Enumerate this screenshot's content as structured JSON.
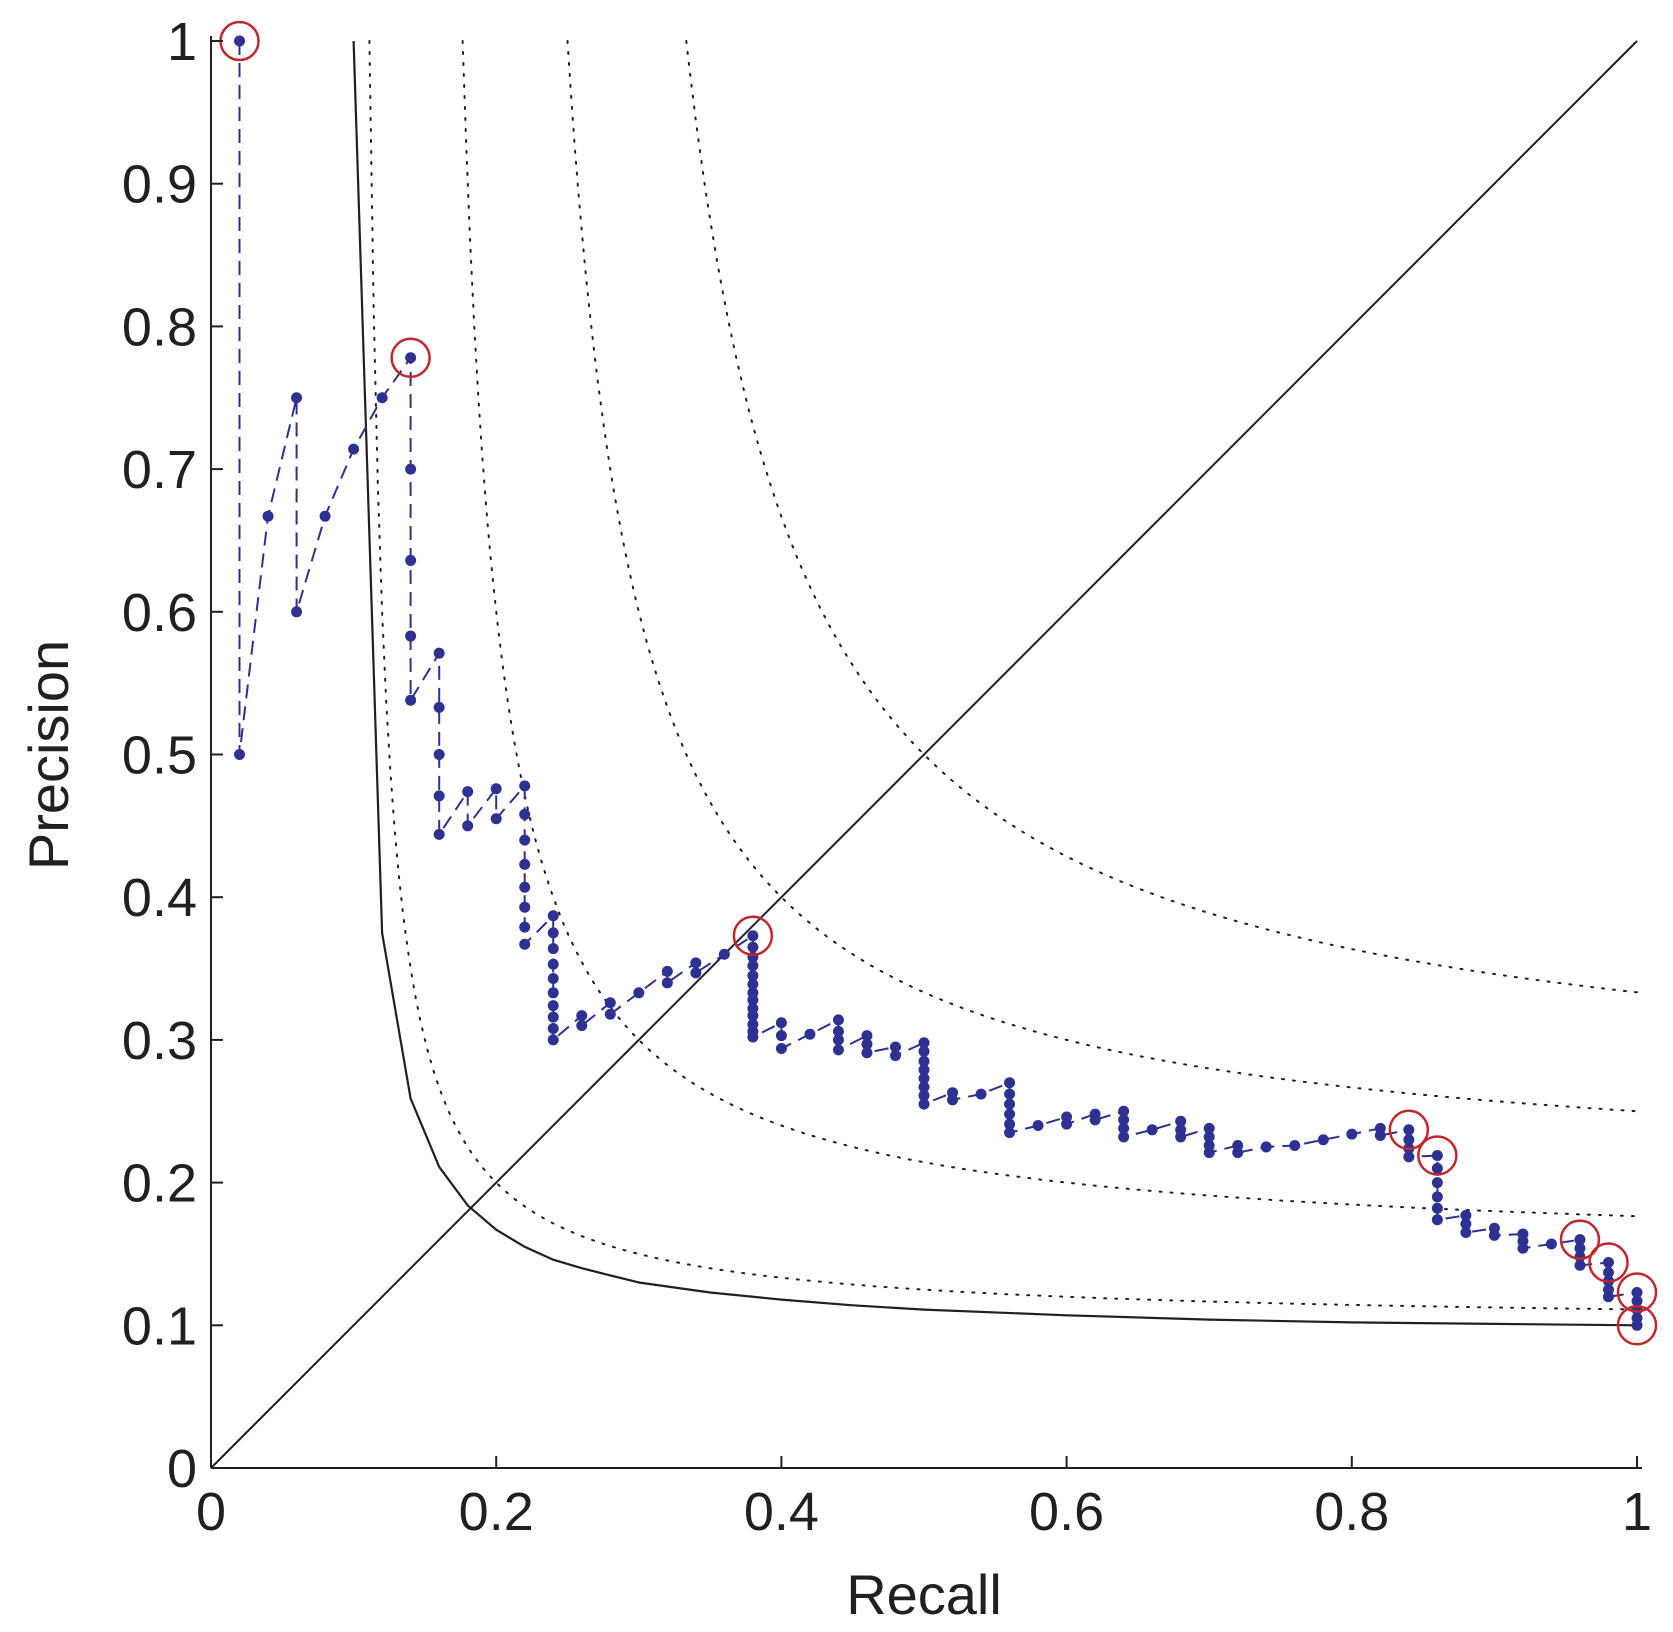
{
  "chart_data": {
    "type": "line",
    "title": "",
    "xlabel": "Recall",
    "ylabel": "Precision",
    "xlim": [
      0,
      1
    ],
    "ylim": [
      0,
      1
    ],
    "x_ticks": [
      "0",
      "0.2",
      "0.4",
      "0.6",
      "0.8",
      "1"
    ],
    "y_ticks": [
      "0",
      "0.1",
      "0.2",
      "0.3",
      "0.4",
      "0.5",
      "0.6",
      "0.7",
      "0.8",
      "0.9",
      "1"
    ],
    "grid": false,
    "legend": "none",
    "colors": {
      "pr_series": "#2e3192",
      "highlight": "#c1272d",
      "reference": "#231f20"
    },
    "series": [
      {
        "style": "dashed-markers",
        "points": [
          [
            0.02,
            1.0
          ],
          [
            0.02,
            0.5
          ],
          [
            0.04,
            0.667
          ],
          [
            0.06,
            0.75
          ],
          [
            0.06,
            0.6
          ],
          [
            0.08,
            0.667
          ],
          [
            0.1,
            0.714
          ],
          [
            0.12,
            0.75
          ],
          [
            0.14,
            0.778
          ],
          [
            0.14,
            0.7
          ],
          [
            0.14,
            0.636
          ],
          [
            0.14,
            0.583
          ],
          [
            0.14,
            0.538
          ],
          [
            0.16,
            0.571
          ],
          [
            0.16,
            0.533
          ],
          [
            0.16,
            0.5
          ],
          [
            0.16,
            0.471
          ],
          [
            0.16,
            0.444
          ],
          [
            0.18,
            0.474
          ],
          [
            0.18,
            0.45
          ],
          [
            0.2,
            0.476
          ],
          [
            0.2,
            0.455
          ],
          [
            0.22,
            0.478
          ],
          [
            0.22,
            0.458
          ],
          [
            0.22,
            0.44
          ],
          [
            0.22,
            0.423
          ],
          [
            0.22,
            0.407
          ],
          [
            0.22,
            0.393
          ],
          [
            0.22,
            0.379
          ],
          [
            0.22,
            0.367
          ],
          [
            0.24,
            0.387
          ],
          [
            0.24,
            0.375
          ],
          [
            0.24,
            0.364
          ],
          [
            0.24,
            0.353
          ],
          [
            0.24,
            0.343
          ],
          [
            0.24,
            0.333
          ],
          [
            0.24,
            0.324
          ],
          [
            0.24,
            0.316
          ],
          [
            0.24,
            0.308
          ],
          [
            0.24,
            0.3
          ],
          [
            0.26,
            0.317
          ],
          [
            0.26,
            0.31
          ],
          [
            0.28,
            0.326
          ],
          [
            0.28,
            0.318
          ],
          [
            0.3,
            0.333
          ],
          [
            0.32,
            0.348
          ],
          [
            0.32,
            0.34
          ],
          [
            0.34,
            0.354
          ],
          [
            0.34,
            0.347
          ],
          [
            0.36,
            0.36
          ],
          [
            0.38,
            0.373
          ],
          [
            0.38,
            0.365
          ],
          [
            0.38,
            0.358
          ],
          [
            0.38,
            0.352
          ],
          [
            0.38,
            0.345
          ],
          [
            0.38,
            0.339
          ],
          [
            0.38,
            0.333
          ],
          [
            0.38,
            0.328
          ],
          [
            0.38,
            0.322
          ],
          [
            0.38,
            0.317
          ],
          [
            0.38,
            0.311
          ],
          [
            0.38,
            0.306
          ],
          [
            0.38,
            0.302
          ],
          [
            0.4,
            0.312
          ],
          [
            0.4,
            0.303
          ],
          [
            0.4,
            0.294
          ],
          [
            0.42,
            0.304
          ],
          [
            0.44,
            0.314
          ],
          [
            0.44,
            0.306
          ],
          [
            0.44,
            0.3
          ],
          [
            0.44,
            0.293
          ],
          [
            0.46,
            0.303
          ],
          [
            0.46,
            0.297
          ],
          [
            0.46,
            0.291
          ],
          [
            0.48,
            0.295
          ],
          [
            0.48,
            0.289
          ],
          [
            0.5,
            0.298
          ],
          [
            0.5,
            0.292
          ],
          [
            0.5,
            0.285
          ],
          [
            0.5,
            0.279
          ],
          [
            0.5,
            0.273
          ],
          [
            0.5,
            0.267
          ],
          [
            0.5,
            0.261
          ],
          [
            0.5,
            0.255
          ],
          [
            0.52,
            0.263
          ],
          [
            0.52,
            0.258
          ],
          [
            0.54,
            0.262
          ],
          [
            0.56,
            0.27
          ],
          [
            0.56,
            0.262
          ],
          [
            0.56,
            0.255
          ],
          [
            0.56,
            0.248
          ],
          [
            0.56,
            0.241
          ],
          [
            0.56,
            0.235
          ],
          [
            0.58,
            0.24
          ],
          [
            0.6,
            0.246
          ],
          [
            0.6,
            0.241
          ],
          [
            0.62,
            0.248
          ],
          [
            0.62,
            0.244
          ],
          [
            0.64,
            0.25
          ],
          [
            0.64,
            0.244
          ],
          [
            0.64,
            0.238
          ],
          [
            0.64,
            0.232
          ],
          [
            0.66,
            0.237
          ],
          [
            0.68,
            0.243
          ],
          [
            0.68,
            0.237
          ],
          [
            0.68,
            0.232
          ],
          [
            0.7,
            0.238
          ],
          [
            0.7,
            0.232
          ],
          [
            0.7,
            0.226
          ],
          [
            0.7,
            0.221
          ],
          [
            0.72,
            0.226
          ],
          [
            0.72,
            0.221
          ],
          [
            0.74,
            0.225
          ],
          [
            0.76,
            0.226
          ],
          [
            0.78,
            0.23
          ],
          [
            0.8,
            0.234
          ],
          [
            0.82,
            0.238
          ],
          [
            0.82,
            0.233
          ],
          [
            0.84,
            0.237
          ],
          [
            0.84,
            0.23
          ],
          [
            0.84,
            0.224
          ],
          [
            0.84,
            0.218
          ],
          [
            0.86,
            0.219
          ],
          [
            0.86,
            0.21
          ],
          [
            0.86,
            0.2
          ],
          [
            0.86,
            0.19
          ],
          [
            0.86,
            0.182
          ],
          [
            0.86,
            0.174
          ],
          [
            0.88,
            0.177
          ],
          [
            0.88,
            0.171
          ],
          [
            0.88,
            0.165
          ],
          [
            0.9,
            0.168
          ],
          [
            0.9,
            0.163
          ],
          [
            0.92,
            0.164
          ],
          [
            0.92,
            0.159
          ],
          [
            0.92,
            0.154
          ],
          [
            0.94,
            0.157
          ],
          [
            0.96,
            0.16
          ],
          [
            0.96,
            0.154
          ],
          [
            0.96,
            0.148
          ],
          [
            0.96,
            0.142
          ],
          [
            0.98,
            0.144
          ],
          [
            0.98,
            0.137
          ],
          [
            0.98,
            0.131
          ],
          [
            0.98,
            0.125
          ],
          [
            0.98,
            0.12
          ],
          [
            1.0,
            0.123
          ],
          [
            1.0,
            0.117
          ],
          [
            1.0,
            0.111
          ],
          [
            1.0,
            0.105
          ],
          [
            1.0,
            0.1
          ]
        ]
      }
    ],
    "highlighted_points": [
      [
        0.02,
        1.0
      ],
      [
        0.14,
        0.778
      ],
      [
        0.38,
        0.373
      ],
      [
        0.84,
        0.237
      ],
      [
        0.86,
        0.219
      ],
      [
        0.96,
        0.16
      ],
      [
        0.98,
        0.144
      ],
      [
        1.0,
        0.123
      ],
      [
        1.0,
        0.1
      ]
    ],
    "reference_lines": {
      "diagonal": [
        [
          0,
          0
        ],
        [
          1,
          1
        ]
      ],
      "random_baseline_f1": [
        [
          0.1,
          1.0
        ],
        [
          0.12,
          0.375
        ],
        [
          0.14,
          0.259
        ],
        [
          0.16,
          0.211
        ],
        [
          0.18,
          0.184
        ],
        [
          0.2,
          0.167
        ],
        [
          0.22,
          0.155
        ],
        [
          0.24,
          0.146
        ],
        [
          0.26,
          0.14
        ],
        [
          0.28,
          0.135
        ],
        [
          0.3,
          0.13
        ],
        [
          0.35,
          0.123
        ],
        [
          0.4,
          0.118
        ],
        [
          0.45,
          0.114
        ],
        [
          0.5,
          0.111
        ],
        [
          0.6,
          0.107
        ],
        [
          0.7,
          0.104
        ],
        [
          0.8,
          0.102
        ],
        [
          0.9,
          0.101
        ],
        [
          1.0,
          0.1
        ]
      ],
      "iso_f1_levels": [
        0.2,
        0.3,
        0.4,
        0.5
      ]
    }
  }
}
